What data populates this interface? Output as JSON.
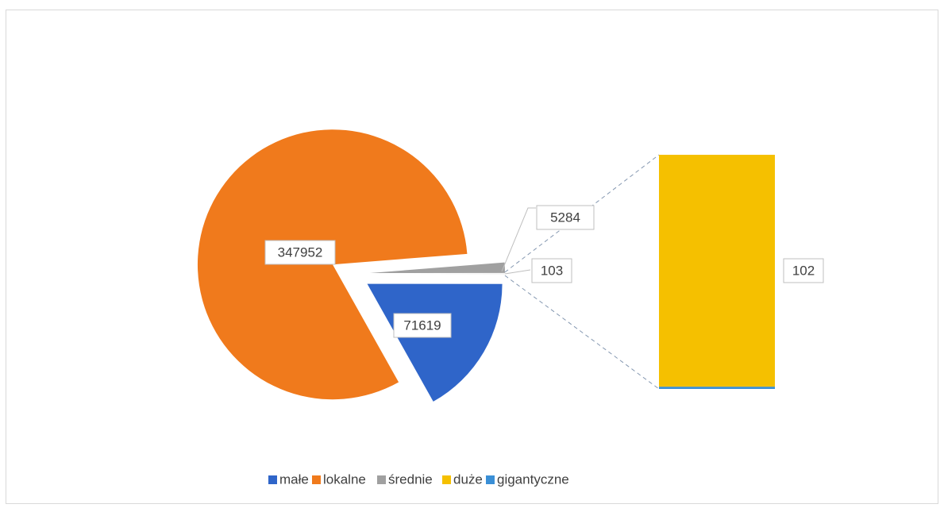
{
  "chart_data": {
    "type": "pie",
    "categories": [
      "małe",
      "lokalne",
      "średnie",
      "duże",
      "gigantyczne"
    ],
    "values": [
      71619,
      347952,
      5284,
      102,
      1
    ],
    "colors": [
      "#2f65c9",
      "#f07a1c",
      "#a0a0a0",
      "#f5c000",
      "#3a8fd6"
    ],
    "secondary_count": 2,
    "other": {
      "value": 103
    },
    "legend": "bottom"
  }
}
